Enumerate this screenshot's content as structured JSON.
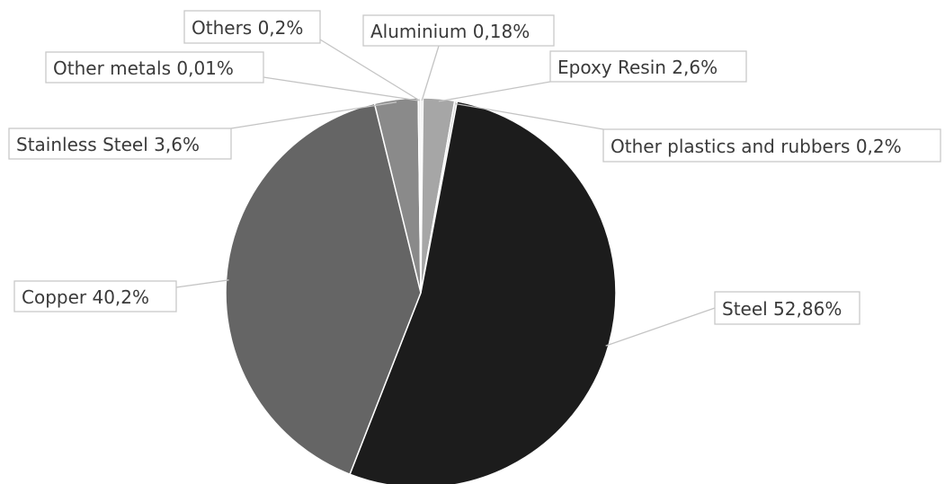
{
  "chart_data": {
    "type": "pie",
    "title": "",
    "slices": [
      {
        "name": "Aluminium",
        "value": 0.18,
        "label": "Aluminium 0,18%",
        "color": "#d9d9d9"
      },
      {
        "name": "Epoxy Resin",
        "value": 2.6,
        "label": "Epoxy Resin 2,6%",
        "color": "#a6a6a6"
      },
      {
        "name": "Other plastics and rubbers",
        "value": 0.2,
        "label": "Other plastics and rubbers 0,2%",
        "color": "#d0d0d0"
      },
      {
        "name": "Steel",
        "value": 52.86,
        "label": "Steel 52,86%",
        "color": "#1c1c1c"
      },
      {
        "name": "Copper",
        "value": 40.2,
        "label": "Copper 40,2%",
        "color": "#656565"
      },
      {
        "name": "Stainless Steel",
        "value": 3.6,
        "label": "Stainless Steel 3,6%",
        "color": "#8a8a8a"
      },
      {
        "name": "Other metals",
        "value": 0.01,
        "label": "Other metals 0,01%",
        "color": "#bfbfbf"
      },
      {
        "name": "Others",
        "value": 0.2,
        "label": "Others 0,2%",
        "color": "#e6e6e6"
      }
    ],
    "legend": "none",
    "data_labels": "outside-with-leaders"
  }
}
